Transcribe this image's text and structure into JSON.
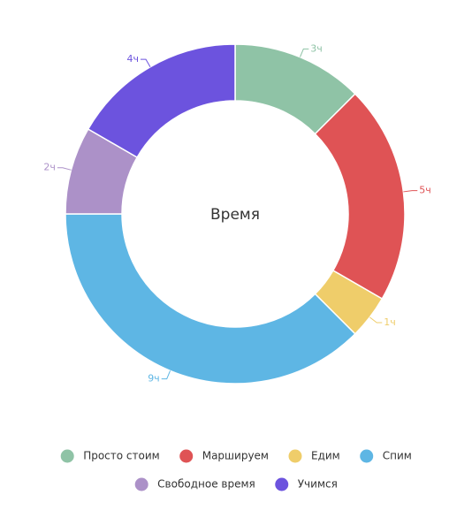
{
  "chart_data": {
    "type": "donut",
    "title": "Время",
    "categories": [
      "Просто стоим",
      "Маршируем",
      "Едим",
      "Спим",
      "Свободное время",
      "Учимся"
    ],
    "values": [
      3,
      5,
      1,
      9,
      2,
      4
    ],
    "value_labels": [
      "3ч",
      "5ч",
      "1ч",
      "9ч",
      "2ч",
      "4ч"
    ],
    "colors": [
      "#8fc3a6",
      "#df5355",
      "#efcd6a",
      "#5eb6e4",
      "#ac91c8",
      "#6c53de"
    ]
  }
}
